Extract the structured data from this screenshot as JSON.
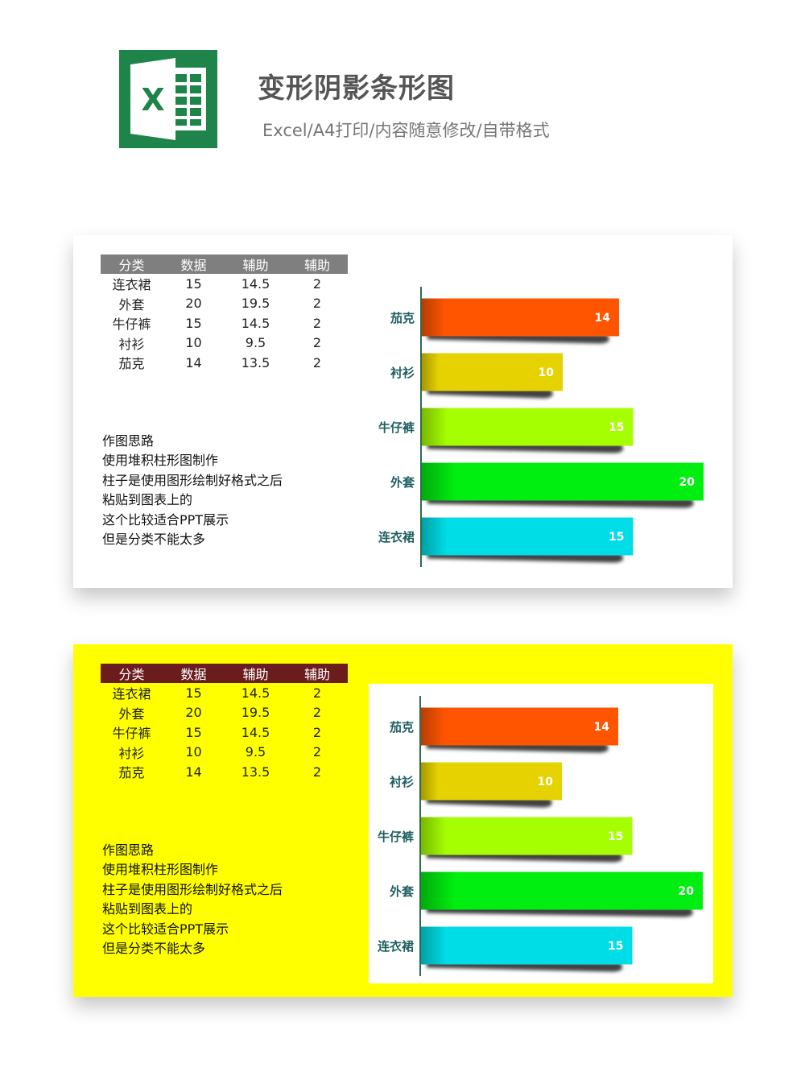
{
  "header": {
    "title": "变形阴影条形图",
    "subtitle": "Excel/A4打印/内容随意修改/自带格式",
    "logo_letter": "X",
    "logo_icon": "excel-icon"
  },
  "panels": [
    {
      "background": "#ffffff",
      "table_header_color": "#7f7f7f",
      "table": {
        "headers": [
          "分类",
          "数据",
          "辅助",
          "辅助"
        ],
        "rows": [
          [
            "连衣裙",
            "15",
            "14.5",
            "2"
          ],
          [
            "外套",
            "20",
            "19.5",
            "2"
          ],
          [
            "牛仔裤",
            "15",
            "14.5",
            "2"
          ],
          [
            "衬衫",
            "10",
            "9.5",
            "2"
          ],
          [
            "茄克",
            "14",
            "13.5",
            "2"
          ]
        ]
      },
      "notes": [
        "作图思路",
        "使用堆积柱形图制作",
        "柱子是使用图形绘制好格式之后",
        "粘贴到图表上的",
        "这个比较适合PPT展示",
        "但是分类不能太多"
      ]
    },
    {
      "background": "#ffff00",
      "table_header_color": "#6b1d1d",
      "table": {
        "headers": [
          "分类",
          "数据",
          "辅助",
          "辅助"
        ],
        "rows": [
          [
            "连衣裙",
            "15",
            "14.5",
            "2"
          ],
          [
            "外套",
            "20",
            "19.5",
            "2"
          ],
          [
            "牛仔裤",
            "15",
            "14.5",
            "2"
          ],
          [
            "衬衫",
            "10",
            "9.5",
            "2"
          ],
          [
            "茄克",
            "14",
            "13.5",
            "2"
          ]
        ]
      },
      "notes": [
        "作图思路",
        "使用堆积柱形图制作",
        "柱子是使用图形绘制好格式之后",
        "粘贴到图表上的",
        "这个比较适合PPT展示",
        "但是分类不能太多"
      ]
    }
  ],
  "chart_data": [
    {
      "type": "bar",
      "orientation": "horizontal",
      "categories": [
        "茄克",
        "衬衫",
        "牛仔裤",
        "外套",
        "连衣裙"
      ],
      "values": [
        14,
        10,
        15,
        20,
        15
      ],
      "colors": [
        "#ff5500",
        "#e6d200",
        "#a6ff00",
        "#00ee10",
        "#00dde6"
      ],
      "data_labels": true,
      "xlim": [
        0,
        20
      ],
      "label_color": "#1f5f5f",
      "axis_color": "#2e6b4e"
    },
    {
      "type": "bar",
      "orientation": "horizontal",
      "categories": [
        "茄克",
        "衬衫",
        "牛仔裤",
        "外套",
        "连衣裙"
      ],
      "values": [
        14,
        10,
        15,
        20,
        15
      ],
      "colors": [
        "#ff5500",
        "#e6d200",
        "#a6ff00",
        "#00ee10",
        "#00dde6"
      ],
      "data_labels": true,
      "xlim": [
        0,
        20
      ],
      "label_color": "#1f5f5f",
      "axis_color": "#2e6b4e"
    }
  ]
}
